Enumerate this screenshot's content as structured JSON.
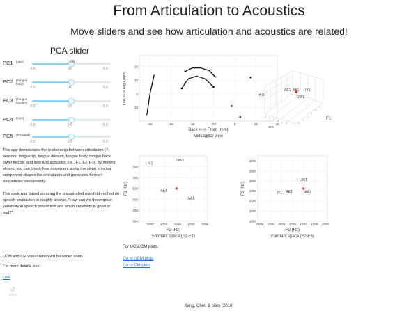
{
  "header": {
    "title": "From Articulation to Acoustics",
    "subtitle": "Move sliders and see how articulation and acoustics are related!"
  },
  "pca": {
    "title": "PCA slider",
    "sliders": [
      {
        "name": "PC1",
        "sub": "(Jaw)",
        "min": "-5.0",
        "mid": "0.0",
        "max": "5.0",
        "value": 0.0,
        "tooltip": "0.0"
      },
      {
        "name": "PC2",
        "sub": "(Tongue body)",
        "min": "-5.0",
        "mid": "0.0",
        "max": "5.0",
        "value": 0.0
      },
      {
        "name": "PC3",
        "sub": "(Tongue dorsum)",
        "min": "-5.0",
        "mid": "0.0",
        "max": "5.0",
        "value": 0.0
      },
      {
        "name": "PC4",
        "sub": "(Lips)",
        "min": "-5.0",
        "mid": "0.0",
        "max": "5.0",
        "value": 0.0
      },
      {
        "name": "PC5",
        "sub": "(Residual)",
        "min": "-5.0",
        "mid": "0.0",
        "max": "5.0",
        "value": 0.0
      }
    ]
  },
  "description": {
    "p1": "This app demostrates the relationship between articulation (7 sensors: tongue tip, tongue dorsum, tongue body, tongue back, lower incisor, and lips) and acoustics (i.e., F1, F2, F3). By moving sliders, you can check how movement along the given principal component shapes the articulators and generates formant frequencies concurrently.",
    "p2": "This work was based on using the uncontrolled manifold method on speech production to roughly answer, \"How can we decompose variability in speech proudction and which variability is good or bad?\".",
    "p3": "UCM and CM visualization will be added soon.",
    "p4": "For more details, see:",
    "link": "Link",
    "undo": "undo"
  },
  "ucm": {
    "label": "For UCM/CM plots,",
    "link1": "Go to UCM plots",
    "link2": "Go to CM plots"
  },
  "footer": "Kang, Chen & Nam (2018)",
  "colors": {
    "accent": "#8fd3f1",
    "point": "#e8212a",
    "link": "#1a73e8"
  },
  "chart_data": [
    {
      "type": "scatter",
      "name": "midsagittal",
      "title": "",
      "xlabel": "Back <--> Front (mm)",
      "xlabel2": "Midsagittal view",
      "ylabel": "Low <--> High (mm)",
      "xlim": [
        -90,
        40
      ],
      "ylim": [
        -20,
        28
      ],
      "xticks": [
        "-80",
        "-60",
        "-40",
        "-20",
        "0",
        "20",
        "40"
      ],
      "yticks": [
        "-10",
        "0",
        "10",
        "20"
      ],
      "lines": [
        {
          "x": [
            -83,
            -80,
            -76
          ],
          "y": [
            -16,
            0,
            14
          ]
        },
        {
          "x": [
            -50,
            -44,
            -36,
            -28,
            -20
          ],
          "y": [
            4,
            11,
            13,
            11,
            5
          ]
        },
        {
          "x": [
            -48,
            -40,
            -32,
            -24,
            -18
          ],
          "y": [
            16,
            19,
            19,
            17,
            12
          ]
        }
      ],
      "points": [
        {
          "x": 15,
          "y": 12
        },
        {
          "x": -3,
          "y": -9
        },
        {
          "x": 5,
          "y": -17
        },
        {
          "x": -50,
          "y": 4
        },
        {
          "x": -20,
          "y": 5
        }
      ]
    },
    {
      "type": "scatter",
      "name": "formant-3d",
      "xlabel": "F2",
      "ylabel": "F1",
      "zlabel": "F3",
      "labels": [
        "AE1",
        "AA1",
        "IY1",
        "UW1"
      ]
    },
    {
      "type": "scatter",
      "name": "f2-f1",
      "title": "",
      "xlabel": "F2 (Hz)",
      "xlabel2": "Formant space (F2-F1)",
      "ylabel": "F1 (Hz)",
      "xlim": [
        2200,
        950
      ],
      "ylim": [
        800,
        200
      ],
      "xticks": [
        "2000",
        "1750",
        "1500",
        "1250",
        "1000"
      ],
      "yticks": [
        "300",
        "400",
        "500",
        "600",
        "700",
        "800"
      ],
      "labels": [
        {
          "text": "IY1",
          "x": 2000,
          "y": 280
        },
        {
          "text": "UW1",
          "x": 1450,
          "y": 250
        },
        {
          "text": "AE1",
          "x": 1750,
          "y": 530
        },
        {
          "text": "AA1",
          "x": 1250,
          "y": 600
        }
      ],
      "point": {
        "x": 1520,
        "y": 500
      }
    },
    {
      "type": "scatter",
      "name": "f2-f3",
      "title": "",
      "xlabel": "F2 (Hz)",
      "xlabel2": "Formant space (F2-F3)",
      "ylabel": "F3 (Hz)",
      "xlim": [
        2550,
        950
      ],
      "ylim": [
        1800,
        3100
      ],
      "xticks": [
        "2500",
        "2250",
        "2000",
        "1750",
        "1500",
        "1250",
        "1000"
      ],
      "yticks": [
        "1800",
        "2000",
        "2200",
        "2400",
        "2600",
        "2800",
        "3000"
      ],
      "labels": [
        {
          "text": "UW1",
          "x": 1500,
          "y": 2600
        },
        {
          "text": "IY1",
          "x": 2050,
          "y": 2340
        },
        {
          "text": "AE1",
          "x": 1830,
          "y": 2370
        },
        {
          "text": "AA1",
          "x": 1400,
          "y": 2360
        }
      ],
      "point": {
        "x": 1500,
        "y": 2450
      }
    }
  ]
}
